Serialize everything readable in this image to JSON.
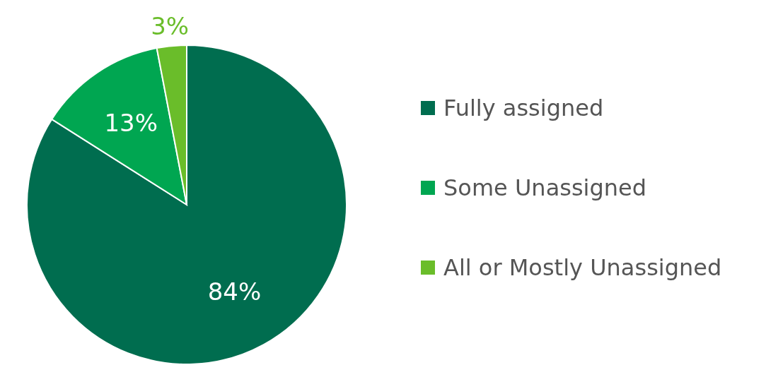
{
  "chart_data": {
    "type": "pie",
    "categories": [
      "Fully assigned",
      "Some Unassigned",
      "All or Mostly Unassigned"
    ],
    "values": [
      84,
      13,
      3
    ],
    "colors": [
      "#006d4f",
      "#00a651",
      "#6abd2a"
    ],
    "value_labels": [
      "84%",
      "13%",
      "3%"
    ],
    "legend": "right"
  }
}
